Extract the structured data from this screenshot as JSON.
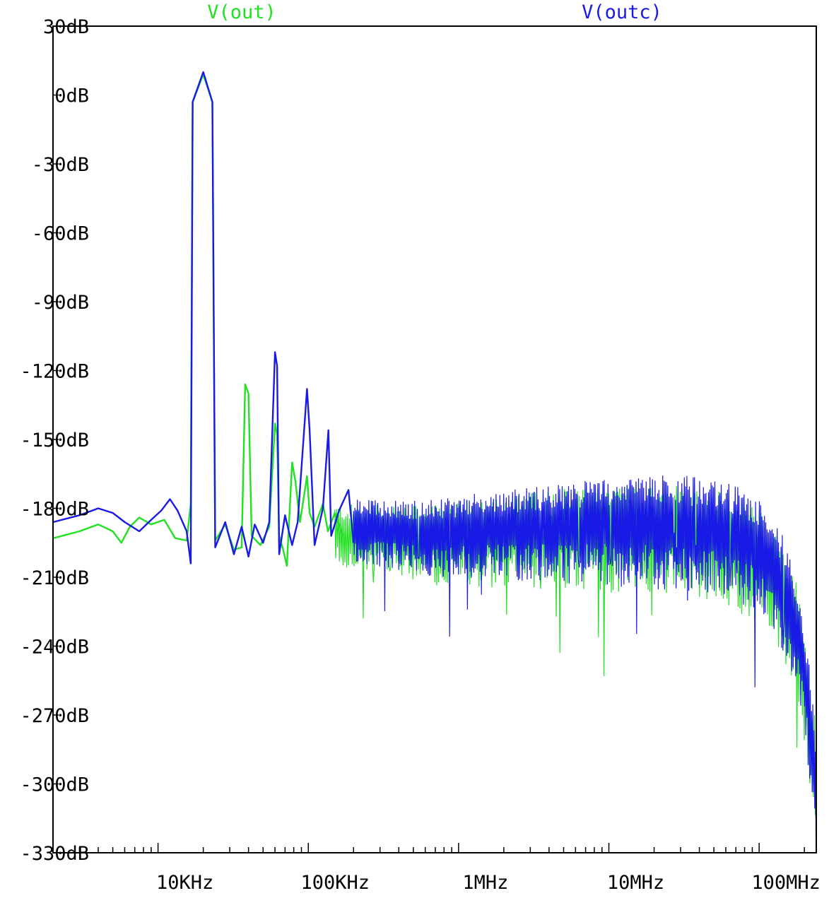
{
  "chart_data": {
    "type": "line",
    "title": "",
    "xlabel": "",
    "ylabel": "",
    "x_scale": "log",
    "xlim_hz": [
      2000,
      240000000
    ],
    "ylim_db": [
      -330,
      30
    ],
    "grid": false,
    "legend_placement": "top",
    "x_ticks": [
      {
        "value": 10000,
        "label": "10KHz"
      },
      {
        "value": 100000,
        "label": "100KHz"
      },
      {
        "value": 1000000,
        "label": "1MHz"
      },
      {
        "value": 10000000,
        "label": "10MHz"
      },
      {
        "value": 100000000,
        "label": "100MHz"
      }
    ],
    "y_ticks": [
      {
        "value": 30,
        "label": "30dB"
      },
      {
        "value": 0,
        "label": "0dB"
      },
      {
        "value": -30,
        "label": "-30dB"
      },
      {
        "value": -60,
        "label": "-60dB"
      },
      {
        "value": -90,
        "label": "-90dB"
      },
      {
        "value": -120,
        "label": "-120dB"
      },
      {
        "value": -150,
        "label": "-150dB"
      },
      {
        "value": -180,
        "label": "-180dB"
      },
      {
        "value": -210,
        "label": "-210dB"
      },
      {
        "value": -240,
        "label": "-240dB"
      },
      {
        "value": -270,
        "label": "-270dB"
      },
      {
        "value": -300,
        "label": "-300dB"
      },
      {
        "value": -330,
        "label": "-330dB"
      }
    ],
    "series": [
      {
        "name": "V(out)",
        "color": "#22e022",
        "points": [
          [
            2000,
            -193
          ],
          [
            3000,
            -190
          ],
          [
            4000,
            -187
          ],
          [
            5000,
            -190
          ],
          [
            5700,
            -195
          ],
          [
            6500,
            -188
          ],
          [
            7500,
            -184
          ],
          [
            9000,
            -187
          ],
          [
            11000,
            -185
          ],
          [
            13000,
            -193
          ],
          [
            15500,
            -194
          ],
          [
            16500,
            -178
          ],
          [
            17000,
            -3
          ],
          [
            20000,
            9
          ],
          [
            23000,
            -3
          ],
          [
            24000,
            -194
          ],
          [
            28000,
            -187
          ],
          [
            32000,
            -198
          ],
          [
            36000,
            -197
          ],
          [
            38000,
            -126
          ],
          [
            40000,
            -130
          ],
          [
            42000,
            -192
          ],
          [
            48000,
            -196
          ],
          [
            55000,
            -188
          ],
          [
            60000,
            -143
          ],
          [
            62000,
            -148
          ],
          [
            64000,
            -192
          ],
          [
            68000,
            -198
          ],
          [
            72000,
            -205
          ],
          [
            78000,
            -160
          ],
          [
            82000,
            -168
          ],
          [
            88000,
            -186
          ],
          [
            98000,
            -166
          ],
          [
            102000,
            -182
          ],
          [
            110000,
            -188
          ],
          [
            125000,
            -178
          ],
          [
            135000,
            -190
          ],
          [
            150000,
            -182
          ],
          [
            170000,
            -192
          ]
        ],
        "noise_floor": [
          [
            150000,
            -190
          ],
          [
            300000,
            -192
          ],
          [
            600000,
            -194
          ],
          [
            1000000,
            -193
          ],
          [
            2000000,
            -192
          ],
          [
            5000000,
            -191
          ],
          [
            10000000,
            -190
          ],
          [
            20000000,
            -190
          ],
          [
            40000000,
            -192
          ],
          [
            70000000,
            -196
          ],
          [
            100000000,
            -202
          ],
          [
            140000000,
            -215
          ],
          [
            180000000,
            -235
          ],
          [
            210000000,
            -265
          ],
          [
            240000000,
            -295
          ]
        ]
      },
      {
        "name": "V(outc)",
        "color": "#1a1ae6",
        "points": [
          [
            2000,
            -186
          ],
          [
            3000,
            -183
          ],
          [
            4000,
            -180
          ],
          [
            5000,
            -182
          ],
          [
            6000,
            -186
          ],
          [
            7500,
            -190
          ],
          [
            9000,
            -185
          ],
          [
            10500,
            -181
          ],
          [
            12000,
            -176
          ],
          [
            13500,
            -181
          ],
          [
            15500,
            -190
          ],
          [
            16500,
            -204
          ],
          [
            17000,
            -3
          ],
          [
            20000,
            10
          ],
          [
            23000,
            -3
          ],
          [
            24000,
            -197
          ],
          [
            28000,
            -186
          ],
          [
            32000,
            -200
          ],
          [
            36000,
            -188
          ],
          [
            40000,
            -201
          ],
          [
            44000,
            -187
          ],
          [
            50000,
            -195
          ],
          [
            55000,
            -186
          ],
          [
            60000,
            -112
          ],
          [
            62000,
            -118
          ],
          [
            64000,
            -200
          ],
          [
            70000,
            -183
          ],
          [
            78000,
            -196
          ],
          [
            85000,
            -186
          ],
          [
            98000,
            -128
          ],
          [
            102000,
            -146
          ],
          [
            110000,
            -196
          ],
          [
            125000,
            -180
          ],
          [
            136000,
            -146
          ],
          [
            142000,
            -192
          ],
          [
            160000,
            -181
          ],
          [
            185000,
            -172
          ],
          [
            200000,
            -195
          ]
        ],
        "noise_floor": [
          [
            200000,
            -188
          ],
          [
            400000,
            -190
          ],
          [
            800000,
            -191
          ],
          [
            1000000,
            -190
          ],
          [
            2000000,
            -189
          ],
          [
            5000000,
            -188
          ],
          [
            10000000,
            -187
          ],
          [
            20000000,
            -187
          ],
          [
            40000000,
            -188
          ],
          [
            70000000,
            -192
          ],
          [
            100000000,
            -198
          ],
          [
            140000000,
            -212
          ],
          [
            180000000,
            -232
          ],
          [
            210000000,
            -262
          ],
          [
            240000000,
            -300
          ]
        ]
      }
    ]
  }
}
